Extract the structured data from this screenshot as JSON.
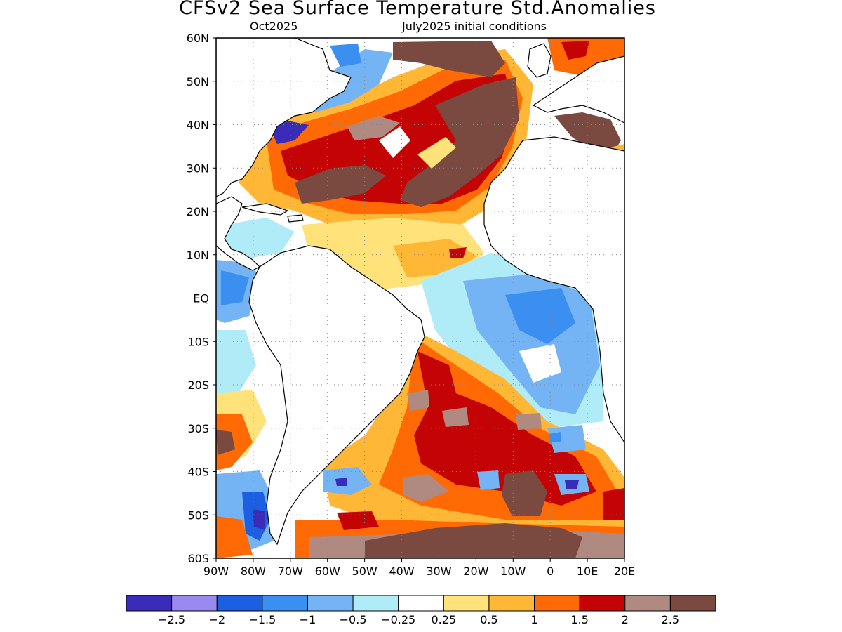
{
  "title": "CFSv2 Sea Surface Temperature Std.Anomalies",
  "subtitle_left": "Oct2025",
  "subtitle_right": "July2025 initial conditions",
  "map": {
    "lon_range": [
      -90,
      20
    ],
    "lat_range": [
      -60,
      60
    ],
    "lat_ticks": [
      {
        "value": 60,
        "label": "60N"
      },
      {
        "value": 50,
        "label": "50N"
      },
      {
        "value": 40,
        "label": "40N"
      },
      {
        "value": 30,
        "label": "30N"
      },
      {
        "value": 20,
        "label": "20N"
      },
      {
        "value": 10,
        "label": "10N"
      },
      {
        "value": 0,
        "label": "EQ"
      },
      {
        "value": -10,
        "label": "10S"
      },
      {
        "value": -20,
        "label": "20S"
      },
      {
        "value": -30,
        "label": "30S"
      },
      {
        "value": -40,
        "label": "40S"
      },
      {
        "value": -50,
        "label": "50S"
      },
      {
        "value": -60,
        "label": "60S"
      }
    ],
    "lon_ticks": [
      {
        "value": -90,
        "label": "90W"
      },
      {
        "value": -80,
        "label": "80W"
      },
      {
        "value": -70,
        "label": "70W"
      },
      {
        "value": -60,
        "label": "60W"
      },
      {
        "value": -50,
        "label": "50W"
      },
      {
        "value": -40,
        "label": "40W"
      },
      {
        "value": -30,
        "label": "30W"
      },
      {
        "value": -20,
        "label": "20W"
      },
      {
        "value": -10,
        "label": "10W"
      },
      {
        "value": 0,
        "label": "0"
      },
      {
        "value": 10,
        "label": "10E"
      },
      {
        "value": 20,
        "label": "20E"
      }
    ],
    "grid": true
  },
  "colorbar": {
    "colors": [
      "#3a2bb8",
      "#9a8af0",
      "#1c5fe0",
      "#3a8ff0",
      "#74b4f4",
      "#b0ecf8",
      "#ffffff",
      "#ffe27a",
      "#ffb735",
      "#ff6a05",
      "#c40404",
      "#b08a80",
      "#7a4a40"
    ],
    "labels": [
      "−2.5",
      "−2",
      "−1.5",
      "−1",
      "−0.5",
      "−0.25",
      "0.25",
      "0.5",
      "1",
      "1.5",
      "2",
      "2.5"
    ]
  }
}
